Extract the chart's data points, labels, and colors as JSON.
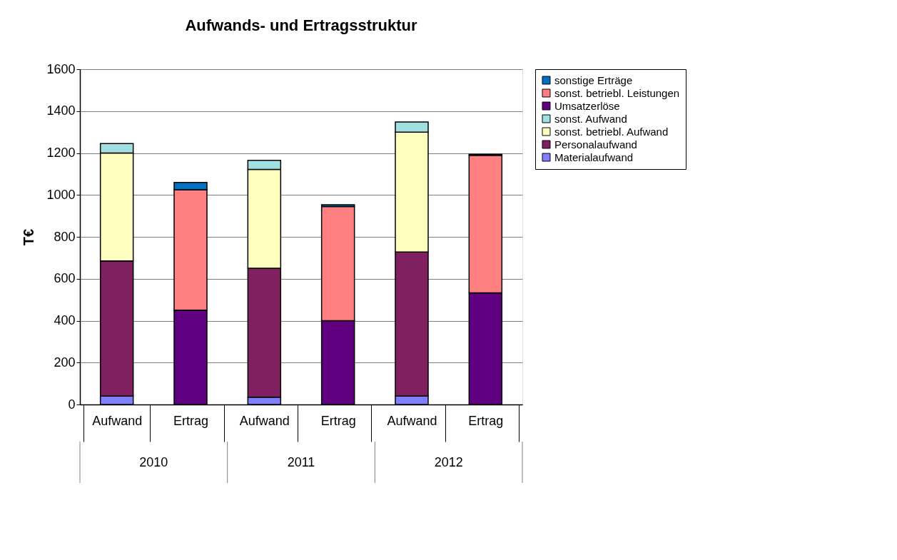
{
  "chart_data": {
    "type": "bar",
    "title": "Aufwands- und Ertragsstruktur",
    "ylabel": "T€",
    "categories": [
      "Aufwand",
      "Ertrag",
      "Aufwand",
      "Ertrag",
      "Aufwand",
      "Ertrag"
    ],
    "annotations": [
      "2010",
      "2011",
      "2012"
    ],
    "stacked": true,
    "ylim": [
      0,
      1600
    ],
    "yticks": [
      0,
      200,
      400,
      600,
      800,
      1000,
      1200,
      1400,
      1600
    ],
    "grid": "y",
    "legend": "right",
    "series": [
      {
        "name": "Materialaufwand",
        "color": "#8080ff",
        "values": [
          40,
          null,
          35,
          null,
          40,
          null
        ]
      },
      {
        "name": "Personalaufwand",
        "color": "#802060",
        "values": [
          645,
          null,
          615,
          null,
          688,
          null
        ]
      },
      {
        "name": "sonst. betriebl. Aufwand",
        "color": "#ffffc0",
        "values": [
          515,
          null,
          472,
          null,
          572,
          null
        ]
      },
      {
        "name": "sonst. Aufwand",
        "color": "#a0e0e0",
        "values": [
          45,
          null,
          43,
          null,
          48,
          null
        ]
      },
      {
        "name": "Umsatzerlöse",
        "color": "#600080",
        "values": [
          null,
          450,
          null,
          400,
          null,
          533
        ]
      },
      {
        "name": "sonst. betriebl. Leistungen",
        "color": "#ff8080",
        "values": [
          null,
          575,
          null,
          545,
          null,
          656
        ]
      },
      {
        "name": "sonstige Erträge",
        "color": "#0070c0",
        "values": [
          null,
          35,
          null,
          8,
          null,
          5
        ]
      }
    ]
  }
}
